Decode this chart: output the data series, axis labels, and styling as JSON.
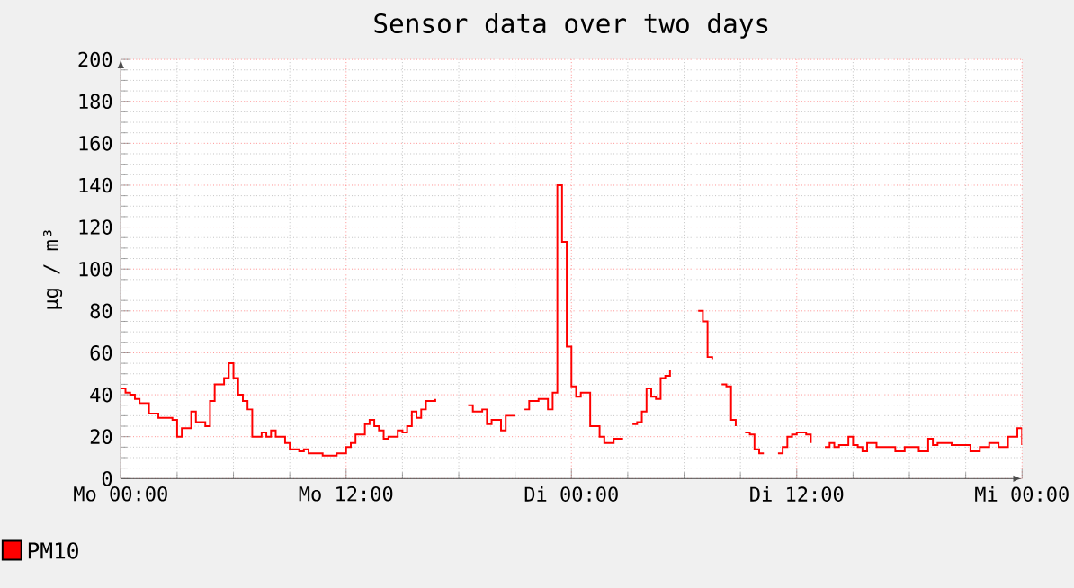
{
  "chart_data": {
    "type": "step",
    "title": "Sensor data over two days",
    "ylabel": "µg / m³",
    "categories": [
      "Mo 00:00",
      null,
      null,
      null,
      null,
      null,
      null,
      null,
      null,
      null,
      null,
      null,
      null,
      null,
      null,
      null,
      null,
      null,
      null,
      null,
      null,
      null,
      null,
      null,
      null,
      null,
      null,
      null,
      null,
      null,
      null,
      null,
      null,
      null,
      null,
      null,
      null,
      null,
      null,
      null,
      null,
      null,
      null,
      null,
      null,
      null,
      null,
      null,
      "Mo 12:00",
      null,
      null,
      null,
      null,
      null,
      null,
      null,
      null,
      null,
      null,
      null,
      null,
      null,
      null,
      null,
      null,
      null,
      null,
      null,
      null,
      null,
      null,
      null,
      null,
      null,
      null,
      null,
      null,
      null,
      null,
      null,
      null,
      null,
      null,
      null,
      null,
      null,
      null,
      null,
      null,
      null,
      null,
      null,
      null,
      null,
      null,
      null,
      "Di 00:00",
      null,
      null,
      null,
      null,
      null,
      null,
      null,
      null,
      null,
      null,
      null,
      null,
      null,
      null,
      null,
      null,
      null,
      null,
      null,
      null,
      null,
      null,
      null,
      null,
      null,
      null,
      null,
      null,
      null,
      null,
      null,
      null,
      null,
      null,
      null,
      null,
      null,
      null,
      null,
      null,
      null,
      null,
      null,
      null,
      null,
      null,
      null,
      "Di 12:00",
      null,
      null,
      null,
      null,
      null,
      null,
      null,
      null,
      null,
      null,
      null,
      null,
      null,
      null,
      null,
      null,
      null,
      null,
      null,
      null,
      null,
      null,
      null,
      null,
      null,
      null,
      null,
      null,
      null,
      null,
      null,
      null,
      null,
      null,
      null,
      null,
      null,
      null,
      null,
      null,
      null,
      null,
      null,
      null,
      null,
      null,
      null,
      "Mi 00:00"
    ],
    "ylim": [
      0,
      200
    ],
    "yticks": [
      0,
      20,
      40,
      60,
      80,
      100,
      120,
      140,
      160,
      180,
      200
    ],
    "grid": true,
    "legend": "bottom left",
    "series": [
      {
        "name": "PM10",
        "color": "#ff0000",
        "values": [
          43,
          41,
          40,
          38,
          36,
          36,
          31,
          31,
          29,
          29,
          29,
          28,
          20,
          24,
          24,
          32,
          27,
          27,
          25,
          37,
          45,
          45,
          48,
          55,
          48,
          40,
          37,
          33,
          20,
          20,
          22,
          20,
          23,
          20,
          20,
          17,
          14,
          14,
          13,
          14,
          12,
          12,
          12,
          11,
          11,
          11,
          12,
          12,
          15,
          17,
          21,
          21,
          26,
          28,
          25,
          23,
          19,
          20,
          20,
          23,
          22,
          25,
          32,
          29,
          33,
          37,
          37,
          38,
          null,
          null,
          null,
          null,
          null,
          null,
          35,
          32,
          32,
          33,
          26,
          28,
          28,
          23,
          30,
          30,
          30,
          null,
          33,
          37,
          37,
          38,
          38,
          33,
          41,
          140,
          113,
          63,
          44,
          39,
          41,
          41,
          25,
          25,
          20,
          17,
          17,
          19,
          19,
          19,
          null,
          26,
          27,
          32,
          43,
          39,
          38,
          48,
          49,
          52,
          null,
          null,
          null,
          null,
          null,
          80,
          75,
          58,
          57,
          null,
          45,
          44,
          28,
          25,
          null,
          22,
          21,
          14,
          12,
          12,
          null,
          null,
          12,
          15,
          20,
          21,
          22,
          22,
          21,
          17,
          null,
          null,
          15,
          17,
          15,
          16,
          16,
          20,
          16,
          15,
          13,
          17,
          17,
          15,
          15,
          15,
          15,
          13,
          13,
          15,
          15,
          15,
          13,
          13,
          19,
          16,
          17,
          17,
          17,
          16,
          16,
          16,
          16,
          13,
          13,
          15,
          15,
          17,
          17,
          15,
          15,
          20,
          20,
          24,
          16
        ]
      }
    ]
  }
}
